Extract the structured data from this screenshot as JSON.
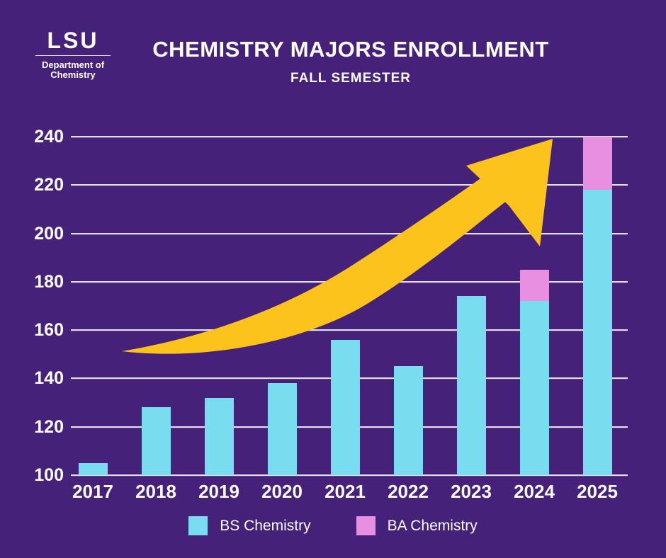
{
  "colors": {
    "background": "#45217A",
    "bs_bar": "#7ADCEF",
    "ba_bar": "#E88FE2",
    "arrow": "#FCC31C",
    "gridline": "#FFFFFF",
    "text": "#FFFFFF"
  },
  "logo": {
    "wordmark": "LSU",
    "dept_line1": "Department of",
    "dept_line2": "Chemistry"
  },
  "header": {
    "title": "CHEMISTRY MAJORS ENROLLMENT",
    "subtitle": "FALL SEMESTER"
  },
  "chart_data": {
    "type": "bar",
    "stacked": true,
    "title": "CHEMISTRY MAJORS ENROLLMENT",
    "subtitle": "FALL SEMESTER",
    "categories": [
      "2017",
      "2018",
      "2019",
      "2020",
      "2021",
      "2022",
      "2023",
      "2024",
      "2025"
    ],
    "series": [
      {
        "name": "BS Chemistry",
        "color": "#7ADCEF",
        "values": [
          105,
          128,
          132,
          138,
          156,
          145,
          174,
          172,
          218
        ]
      },
      {
        "name": "BA Chemistry",
        "color": "#E88FE2",
        "values": [
          0,
          0,
          0,
          0,
          0,
          0,
          0,
          13,
          22
        ]
      }
    ],
    "totals": [
      105,
      128,
      132,
      138,
      156,
      145,
      174,
      185,
      240
    ],
    "xlabel": "",
    "ylabel": "",
    "ylim": [
      100,
      240
    ],
    "yticks": [
      100,
      120,
      140,
      160,
      180,
      200,
      220,
      240
    ],
    "grid": true,
    "legend_position": "bottom",
    "annotations": [
      "yellow upward trend arrow sweeping from lower-left to upper-right"
    ]
  }
}
